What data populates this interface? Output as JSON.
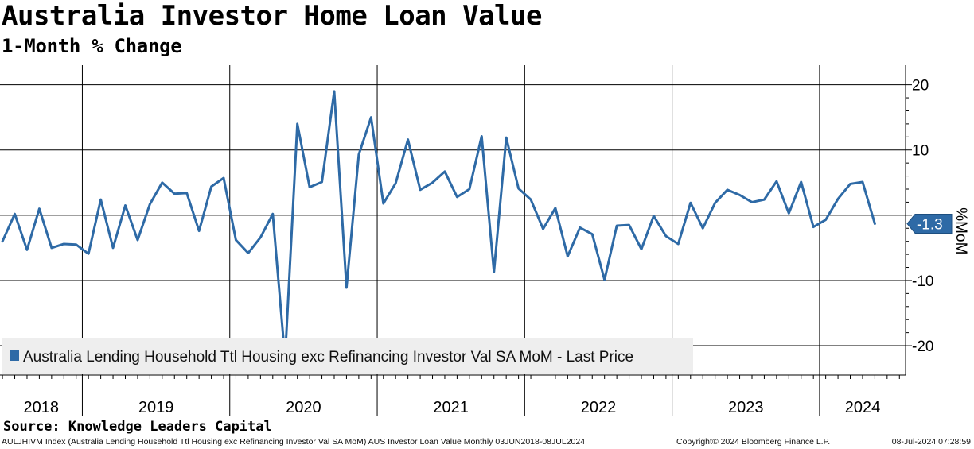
{
  "title": "Australia Investor Home Loan Value",
  "subtitle": "1-Month % Change",
  "source": "Source: Knowledge Leaders Capital",
  "footer": {
    "left": "AULJHIVM Index (Australia Lending Household Ttl Housing exc Refinancing Investor Val SA MoM) AUS Investor Loan Value  Monthly 03JUN2018-08JUL2024",
    "middle": "Copyright© 2024 Bloomberg Finance L.P.",
    "right": "08-Jul-2024 07:28:59"
  },
  "colors": {
    "line": "#2e6aa6",
    "grid": "#000000",
    "legend_bg": "#eeeeee",
    "label_bg": "#2e6aa6"
  },
  "chart_data": {
    "type": "line",
    "title": "Australia Investor Home Loan Value",
    "subtitle": "1-Month % Change",
    "ylabel": "%MoM",
    "ylim": [
      -24.5,
      23
    ],
    "yticks": [
      -20,
      -10,
      0,
      10,
      20
    ],
    "x_start": "2018-06",
    "x_end": "2024-07",
    "year_labels": [
      "2018",
      "2019",
      "2020",
      "2021",
      "2022",
      "2023",
      "2024"
    ],
    "legend": "Australia Lending Household Ttl Housing exc Refinancing Investor Val SA MoM - Last Price",
    "last_price": -1.3,
    "last_price_label": "-1.3",
    "series": [
      {
        "name": "Australia Lending Household Ttl Housing exc Refinancing Investor Val SA MoM",
        "values": [
          -4.0,
          0.2,
          -5.3,
          1.0,
          -5.0,
          -4.4,
          -4.5,
          -5.9,
          2.4,
          -5.0,
          1.5,
          -3.8,
          1.7,
          5.0,
          3.3,
          3.4,
          -2.4,
          4.4,
          5.7,
          -3.8,
          -5.8,
          -3.4,
          0.2,
          -22.0,
          14.0,
          4.3,
          5.1,
          19.0,
          -11.1,
          9.3,
          15.0,
          1.8,
          4.9,
          11.6,
          3.9,
          5.0,
          6.7,
          2.8,
          4.0,
          12.1,
          -8.7,
          11.9,
          4.1,
          2.4,
          -2.1,
          1.1,
          -6.3,
          -1.9,
          -2.9,
          -9.9,
          -1.6,
          -1.5,
          -5.2,
          -0.1,
          -3.2,
          -4.4,
          1.9,
          -2.0,
          1.9,
          3.9,
          3.1,
          2.0,
          2.4,
          5.2,
          0.3,
          5.1,
          -1.8,
          -0.7,
          2.5,
          4.8,
          5.1,
          -1.3
        ]
      }
    ]
  }
}
